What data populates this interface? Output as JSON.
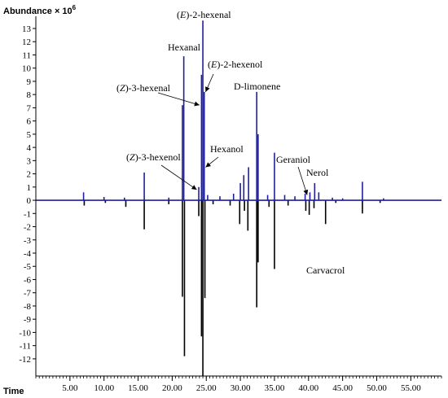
{
  "chart_data": {
    "type": "line",
    "ylabel": "Abundance × 10",
    "ylabel_exp": "6",
    "xlabel": "Time",
    "xlim": [
      0,
      59.5
    ],
    "ylim": [
      -13.3,
      13.8
    ],
    "x_ticks": [
      5,
      10,
      15,
      20,
      25,
      30,
      35,
      40,
      45,
      50,
      55
    ],
    "x_tick_labels": [
      "5.00",
      "10.00",
      "15.00",
      "20.00",
      "25.00",
      "30.00",
      "35.00",
      "40.00",
      "45.00",
      "50.00",
      "55.00"
    ],
    "y_ticks": [
      13,
      12,
      11,
      10,
      9,
      8,
      7,
      6,
      5,
      4,
      3,
      2,
      1,
      0,
      -1,
      -2,
      -3,
      -4,
      -5,
      -6,
      -7,
      -8,
      -9,
      -10,
      -11,
      -12
    ],
    "y_tick_labels": [
      "13",
      "12",
      "11",
      "10",
      "9",
      "8",
      "7",
      "6",
      "5",
      "4",
      "3",
      "2",
      "1",
      "0",
      "-1",
      "-2",
      "-3",
      "-4",
      "-5",
      "-6",
      "-7",
      "-8",
      "-9",
      "-10",
      "-11",
      "-12"
    ],
    "grid": false,
    "legend": "none",
    "series": [
      {
        "color": "#1f1f9e",
        "peaks": [
          {
            "x": 7.0,
            "y": 0.6
          },
          {
            "x": 10.0,
            "y": 0.25
          },
          {
            "x": 13.0,
            "y": 0.2
          },
          {
            "x": 15.9,
            "y": 2.1
          },
          {
            "x": 19.5,
            "y": 0.2
          },
          {
            "x": 21.5,
            "y": 7.2
          },
          {
            "x": 21.7,
            "y": 10.9
          },
          {
            "x": 23.9,
            "y": 1.0
          },
          {
            "x": 24.3,
            "y": 9.5
          },
          {
            "x": 24.5,
            "y": 13.6
          },
          {
            "x": 24.7,
            "y": 8.2
          },
          {
            "x": 25.2,
            "y": 0.4
          },
          {
            "x": 27.0,
            "y": 0.3
          },
          {
            "x": 29.0,
            "y": 0.5
          },
          {
            "x": 30.0,
            "y": 1.3
          },
          {
            "x": 30.5,
            "y": 1.9
          },
          {
            "x": 31.2,
            "y": 2.5
          },
          {
            "x": 32.4,
            "y": 8.2
          },
          {
            "x": 32.6,
            "y": 5.0
          },
          {
            "x": 34.0,
            "y": 0.4
          },
          {
            "x": 35.0,
            "y": 3.6
          },
          {
            "x": 36.5,
            "y": 0.4
          },
          {
            "x": 38.0,
            "y": 0.3
          },
          {
            "x": 39.5,
            "y": 0.5
          },
          {
            "x": 40.2,
            "y": 0.6
          },
          {
            "x": 40.9,
            "y": 1.3
          },
          {
            "x": 41.5,
            "y": 0.6
          },
          {
            "x": 43.5,
            "y": 0.2
          },
          {
            "x": 45.0,
            "y": 0.15
          },
          {
            "x": 47.9,
            "y": 1.4
          },
          {
            "x": 51.0,
            "y": 0.15
          }
        ]
      },
      {
        "color": "#000000",
        "peaks": [
          {
            "x": 7.1,
            "y": -0.4
          },
          {
            "x": 10.2,
            "y": -0.2
          },
          {
            "x": 13.2,
            "y": -0.5
          },
          {
            "x": 15.9,
            "y": -2.2
          },
          {
            "x": 19.5,
            "y": -0.3
          },
          {
            "x": 21.5,
            "y": -7.3
          },
          {
            "x": 21.8,
            "y": -11.8
          },
          {
            "x": 23.9,
            "y": -1.2
          },
          {
            "x": 24.3,
            "y": -10.3
          },
          {
            "x": 24.5,
            "y": -13.3
          },
          {
            "x": 24.8,
            "y": -7.4
          },
          {
            "x": 26.0,
            "y": -0.3
          },
          {
            "x": 28.5,
            "y": -0.4
          },
          {
            "x": 29.9,
            "y": -1.8
          },
          {
            "x": 30.6,
            "y": -0.8
          },
          {
            "x": 31.1,
            "y": -2.3
          },
          {
            "x": 32.4,
            "y": -8.1
          },
          {
            "x": 32.6,
            "y": -4.7
          },
          {
            "x": 34.2,
            "y": -0.5
          },
          {
            "x": 35.0,
            "y": -5.2
          },
          {
            "x": 37.0,
            "y": -0.4
          },
          {
            "x": 39.6,
            "y": -0.8
          },
          {
            "x": 40.1,
            "y": -1.1
          },
          {
            "x": 40.8,
            "y": -0.6
          },
          {
            "x": 42.5,
            "y": -1.8
          },
          {
            "x": 44.0,
            "y": -0.2
          },
          {
            "x": 47.9,
            "y": -1.0
          },
          {
            "x": 50.5,
            "y": -0.2
          }
        ]
      }
    ],
    "annotations": [
      {
        "label": "(E)-2-hexenal",
        "x": 24.5,
        "y": 13.6
      },
      {
        "label": "Hexanal",
        "x": 21.7,
        "y": 10.9
      },
      {
        "label": "(E)-2-hexenol",
        "x": 24.9,
        "y": 8.2
      },
      {
        "label": "(Z)-3-hexenal",
        "x": 24.0,
        "y": 7.2
      },
      {
        "label": "D-limonene",
        "x": 32.4,
        "y": 8.2
      },
      {
        "label": "Hexanol",
        "x": 24.9,
        "y": 2.5
      },
      {
        "label": "(Z)-3-hexenol",
        "x": 23.6,
        "y": 0.8
      },
      {
        "label": "Geraniol",
        "x": 39.8,
        "y": 0.4
      },
      {
        "label": "Nerol",
        "x": 40.9,
        "y": 1.3
      },
      {
        "label": "Carvacrol",
        "x": 42.5,
        "y": -1.8
      }
    ]
  }
}
